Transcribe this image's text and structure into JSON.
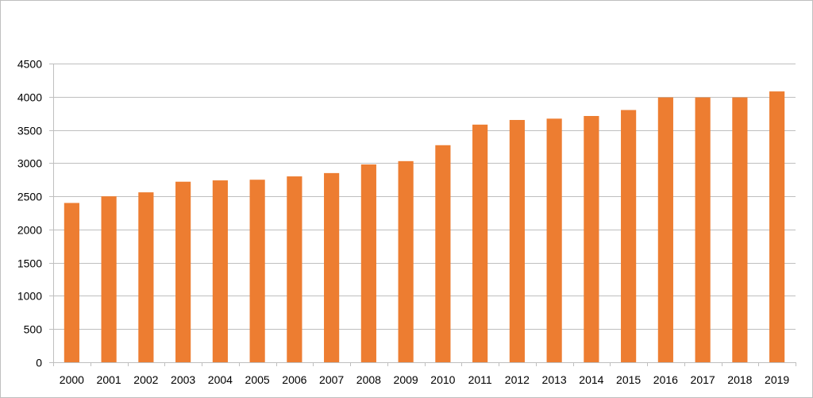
{
  "chart_data": {
    "type": "bar",
    "title": "",
    "xlabel": "",
    "ylabel": "",
    "categories": [
      "2000",
      "2001",
      "2002",
      "2003",
      "2004",
      "2005",
      "2006",
      "2007",
      "2008",
      "2009",
      "2010",
      "2011",
      "2012",
      "2013",
      "2014",
      "2015",
      "2016",
      "2017",
      "2018",
      "2019"
    ],
    "values": [
      2400,
      2500,
      2560,
      2720,
      2740,
      2750,
      2800,
      2850,
      2980,
      3030,
      3270,
      3580,
      3650,
      3670,
      3710,
      3800,
      3990,
      3990,
      3990,
      4080
    ],
    "ylim": [
      0,
      4500
    ],
    "yticks": [
      "0",
      "500",
      "1000",
      "1500",
      "2000",
      "2500",
      "3000",
      "3500",
      "4000",
      "4500"
    ],
    "grid": true,
    "legend": "none",
    "bar_color": "#ED7D31",
    "grid_color": "#BFBFBF"
  }
}
